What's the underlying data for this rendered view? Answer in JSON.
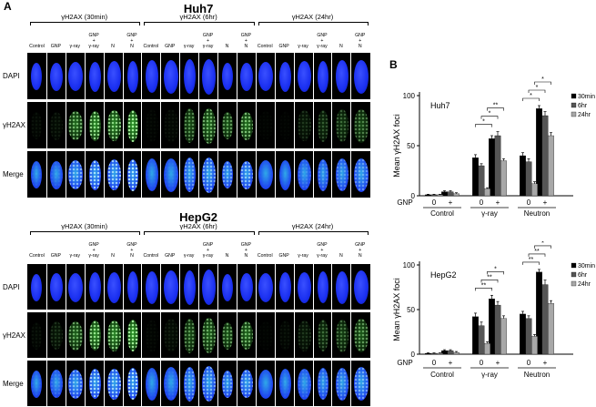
{
  "panel_a": {
    "letter": "A",
    "cell_lines": [
      {
        "name": "Huh7",
        "groups": [
          "γH2AX (30min)",
          "γH2AX (6hr)",
          "γH2AX (24hr)"
        ],
        "columns": [
          "Control",
          "GNP",
          "γ-ray",
          "GNP\n+\nγ-ray",
          "N",
          "GNP\n+\nN"
        ],
        "rows": [
          "DAPI",
          "γH2AX",
          "Merge"
        ]
      },
      {
        "name": "HepG2",
        "groups": [
          "γH2AX (30min)",
          "γH2AX (6hr)",
          "γH2AX (24hr)"
        ],
        "columns": [
          "Control",
          "GNP",
          "γ-ray",
          "GNP\n+\nγ-ray",
          "N",
          "GNP\n+\nN"
        ],
        "rows": [
          "DAPI",
          "γH2AX",
          "Merge"
        ]
      }
    ],
    "intensity": [
      [
        [
          0.05,
          0.08,
          0.6,
          0.8,
          0.75,
          0.9
        ],
        [
          0.03,
          0.05,
          0.45,
          0.6,
          0.5,
          0.65
        ],
        [
          0.02,
          0.02,
          0.15,
          0.25,
          0.3,
          0.4
        ]
      ],
      [
        [
          0.05,
          0.15,
          0.55,
          0.8,
          0.75,
          0.9
        ],
        [
          0.03,
          0.08,
          0.45,
          0.55,
          0.5,
          0.6
        ],
        [
          0.02,
          0.05,
          0.15,
          0.3,
          0.35,
          0.5
        ]
      ]
    ],
    "colors": {
      "dapi": "#1a2ff0",
      "foci": "#3fd03a",
      "merge": "#2fa8e8"
    }
  },
  "panel_b": {
    "letter": "B"
  },
  "chart_data": [
    {
      "type": "bar",
      "title": "Huh7",
      "ylabel": "Mean γH2AX foci",
      "ylim": [
        0,
        100
      ],
      "yticks": [
        0,
        50,
        100
      ],
      "x_row_label": "GNP",
      "groups": [
        "Control",
        "γ-ray",
        "Neutron"
      ],
      "gnp_labels": [
        "0",
        "+",
        "0",
        "+",
        "0",
        "+"
      ],
      "series": [
        {
          "name": "30min",
          "color": "#000000",
          "values": [
            1,
            4,
            38,
            57,
            40,
            87
          ],
          "errors": [
            0.5,
            1,
            3,
            3,
            3,
            3
          ]
        },
        {
          "name": "6hr",
          "color": "#555555",
          "values": [
            1,
            4,
            30,
            60,
            34,
            80
          ],
          "errors": [
            0.5,
            1,
            2,
            4,
            3,
            4
          ]
        },
        {
          "name": "24hr",
          "color": "#a8a8a8",
          "values": [
            1,
            2,
            7,
            35,
            12,
            60
          ],
          "errors": [
            0.5,
            1,
            1,
            2,
            2,
            3
          ]
        }
      ],
      "significance": [
        "*",
        "*",
        "**",
        "*",
        "*",
        "*"
      ]
    },
    {
      "type": "bar",
      "title": "HepG2",
      "ylabel": "Mean γH2AX foci",
      "ylim": [
        0,
        100
      ],
      "yticks": [
        0,
        50,
        100
      ],
      "x_row_label": "GNP",
      "groups": [
        "Control",
        "γ-ray",
        "Neutron"
      ],
      "gnp_labels": [
        "0",
        "+",
        "0",
        "+",
        "0",
        "+"
      ],
      "series": [
        {
          "name": "30min",
          "color": "#000000",
          "values": [
            1,
            4,
            42,
            62,
            45,
            92
          ],
          "errors": [
            0.5,
            1,
            4,
            4,
            3,
            3
          ]
        },
        {
          "name": "6hr",
          "color": "#555555",
          "values": [
            1,
            4,
            32,
            55,
            40,
            78
          ],
          "errors": [
            0.5,
            1,
            4,
            4,
            3,
            5
          ]
        },
        {
          "name": "24hr",
          "color": "#a8a8a8",
          "values": [
            1,
            2,
            12,
            40,
            20,
            57
          ],
          "errors": [
            0.5,
            1,
            2,
            3,
            2,
            3
          ]
        }
      ],
      "significance": [
        "**",
        "**",
        "*",
        "**",
        "**",
        "*"
      ]
    }
  ]
}
